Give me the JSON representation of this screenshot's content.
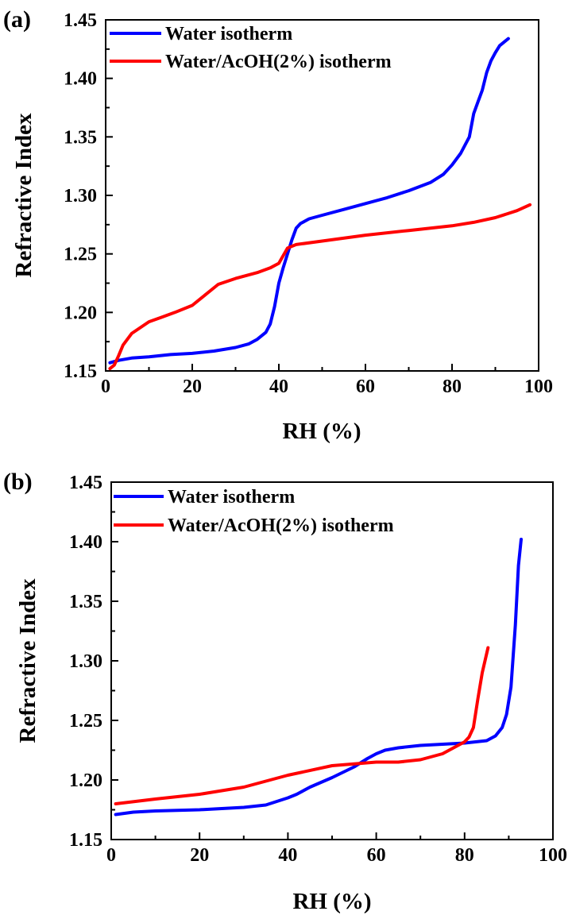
{
  "chart_data": [
    {
      "panel_label": "(a)",
      "type": "line",
      "xlabel": "RH (%)",
      "ylabel": "Refractive Index",
      "xlim": [
        0,
        100
      ],
      "ylim": [
        1.15,
        1.45
      ],
      "xticks": [
        0,
        20,
        40,
        60,
        80,
        100
      ],
      "xtick_labels": [
        "0",
        "20",
        "40",
        "60",
        "80",
        "100"
      ],
      "yticks": [
        1.15,
        1.2,
        1.25,
        1.3,
        1.35,
        1.4,
        1.45
      ],
      "ytick_labels": [
        "1.15",
        "1.20",
        "1.25",
        "1.30",
        "1.35",
        "1.40",
        "1.45"
      ],
      "legend_position": "top-left",
      "series": [
        {
          "name": "Water isotherm",
          "color": "#0000ff",
          "x": [
            1,
            3,
            6,
            10,
            15,
            20,
            25,
            30,
            33,
            35,
            37,
            38,
            39,
            40,
            41,
            42,
            43,
            44,
            45,
            47,
            50,
            55,
            60,
            65,
            70,
            75,
            78,
            80,
            82,
            84,
            85,
            86,
            87,
            88,
            89,
            90,
            91,
            93
          ],
          "y": [
            1.157,
            1.159,
            1.161,
            1.162,
            1.164,
            1.165,
            1.167,
            1.17,
            1.173,
            1.177,
            1.183,
            1.19,
            1.205,
            1.225,
            1.238,
            1.25,
            1.262,
            1.272,
            1.276,
            1.28,
            1.283,
            1.288,
            1.293,
            1.298,
            1.304,
            1.311,
            1.318,
            1.326,
            1.336,
            1.35,
            1.37,
            1.38,
            1.39,
            1.405,
            1.415,
            1.422,
            1.428,
            1.434
          ]
        },
        {
          "name": "Water/AcOH(2%) isotherm",
          "color": "#ff0000",
          "x": [
            1,
            2,
            3,
            4,
            6,
            8,
            10,
            13,
            16,
            20,
            23,
            26,
            30,
            35,
            38,
            40,
            42,
            44,
            50,
            60,
            70,
            80,
            85,
            90,
            95,
            98
          ],
          "y": [
            1.152,
            1.155,
            1.163,
            1.172,
            1.182,
            1.187,
            1.192,
            1.196,
            1.2,
            1.206,
            1.215,
            1.224,
            1.229,
            1.234,
            1.238,
            1.242,
            1.255,
            1.258,
            1.261,
            1.266,
            1.27,
            1.274,
            1.277,
            1.281,
            1.287,
            1.292
          ]
        }
      ]
    },
    {
      "panel_label": "(b)",
      "type": "line",
      "xlabel": "RH (%)",
      "ylabel": "Refractive Index",
      "xlim": [
        0,
        100
      ],
      "ylim": [
        1.15,
        1.45
      ],
      "xticks": [
        0,
        20,
        40,
        60,
        80,
        100
      ],
      "xtick_labels": [
        "0",
        "20",
        "40",
        "60",
        "80",
        "100"
      ],
      "yticks": [
        1.15,
        1.2,
        1.25,
        1.3,
        1.35,
        1.4,
        1.45
      ],
      "ytick_labels": [
        "1.15",
        "1.20",
        "1.25",
        "1.30",
        "1.35",
        "1.40",
        "1.45"
      ],
      "legend_position": "top-left",
      "series": [
        {
          "name": "Water isotherm",
          "color": "#0000ff",
          "x": [
            1,
            5,
            10,
            20,
            30,
            35,
            40,
            42,
            45,
            50,
            55,
            58,
            60,
            62,
            65,
            70,
            75,
            80,
            85,
            87,
            88.5,
            89.5,
            90.5,
            91.5,
            92.2,
            92.8
          ],
          "y": [
            1.171,
            1.173,
            1.174,
            1.175,
            1.177,
            1.179,
            1.185,
            1.188,
            1.194,
            1.202,
            1.211,
            1.218,
            1.222,
            1.225,
            1.227,
            1.229,
            1.23,
            1.231,
            1.233,
            1.237,
            1.244,
            1.255,
            1.278,
            1.33,
            1.38,
            1.402
          ]
        },
        {
          "name": "Water/AcOH(2%) isotherm",
          "color": "#ff0000",
          "x": [
            1,
            10,
            20,
            30,
            40,
            50,
            60,
            65,
            70,
            75,
            78,
            80,
            81,
            82,
            83,
            84,
            85.3
          ],
          "y": [
            1.18,
            1.184,
            1.188,
            1.194,
            1.204,
            1.212,
            1.215,
            1.215,
            1.217,
            1.222,
            1.228,
            1.232,
            1.236,
            1.244,
            1.268,
            1.29,
            1.311
          ]
        }
      ]
    }
  ]
}
